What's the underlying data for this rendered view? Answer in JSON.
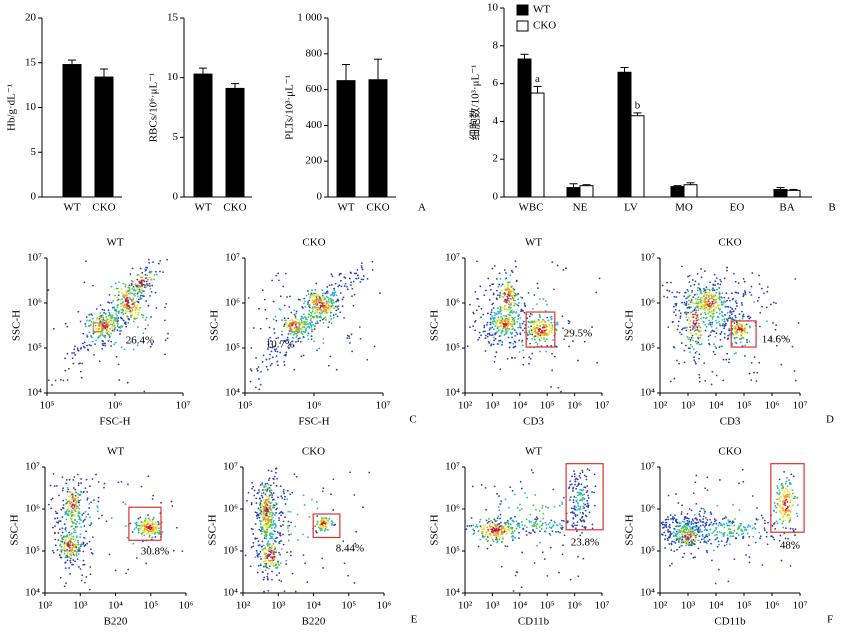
{
  "chart_data": [
    {
      "type": "bar",
      "ylabel": "Hb/g·dL⁻¹",
      "categories": [
        "WT",
        "CKO"
      ],
      "values": [
        14.8,
        13.4
      ],
      "errors": [
        0.5,
        0.9
      ],
      "color": "#000000",
      "ylim": [
        0,
        20
      ],
      "yticks": [
        0,
        5,
        10,
        15,
        20
      ]
    },
    {
      "type": "bar",
      "ylabel": "RBCs/10⁶·μL⁻¹",
      "categories": [
        "WT",
        "CKO"
      ],
      "values": [
        10.3,
        9.1
      ],
      "errors": [
        0.5,
        0.4
      ],
      "color": "#000000",
      "ylim": [
        0,
        15
      ],
      "yticks": [
        0,
        5,
        10,
        15
      ]
    },
    {
      "type": "bar",
      "ylabel": "PLTs/10³·μL⁻¹",
      "categories": [
        "WT",
        "CKO"
      ],
      "values": [
        650,
        655
      ],
      "errors": [
        90,
        115
      ],
      "color": "#000000",
      "ylim": [
        0,
        1000
      ],
      "yticks": [
        0,
        200,
        400,
        600,
        800,
        {
          "value": 1000,
          "label": "1 000"
        }
      ],
      "panel": "A"
    },
    {
      "type": "grouped_bar",
      "ylabel": "细胞数/10³·μL⁻¹",
      "categories": [
        "WBC",
        "NE",
        "LV",
        "MO",
        "EO",
        "BA"
      ],
      "ylim": [
        0,
        10
      ],
      "yticks": [
        0,
        2,
        4,
        6,
        8,
        10
      ],
      "panel": "B",
      "legend": "top-left",
      "series": [
        {
          "name": "WT",
          "color": "#000000",
          "values": [
            7.3,
            0.5,
            6.6,
            0.55,
            0,
            0.4
          ],
          "errors": [
            0.25,
            0.2,
            0.25,
            0.05,
            0,
            0.1
          ]
        },
        {
          "name": "CKO",
          "color": "#ffffff",
          "values": [
            5.5,
            0.6,
            4.3,
            0.65,
            0,
            0.35
          ],
          "errors": [
            0.35,
            0.05,
            0.15,
            0.1,
            0,
            0.05
          ],
          "annotations": [
            "a",
            null,
            "b",
            null,
            null,
            null
          ]
        }
      ]
    },
    {
      "type": "flow",
      "title": "WT",
      "xlabel": "FSC-H",
      "ylabel": "SSC-H",
      "log": true,
      "xlim": [
        100000,
        10000000
      ],
      "xticks": [
        {
          "value": 100000,
          "label": "10⁵"
        },
        {
          "value": 1000000,
          "label": "10⁶"
        },
        {
          "value": 10000000,
          "label": "10⁷"
        }
      ],
      "ylim": [
        10000,
        10000000
      ],
      "yticks": [
        {
          "value": 10000,
          "label": "10⁴"
        },
        {
          "value": 100000,
          "label": "10⁵"
        },
        {
          "value": 1000000,
          "label": "10⁶"
        },
        {
          "value": 10000000,
          "label": "10⁷"
        }
      ],
      "gate": {
        "x": [
          480000,
          640000
        ],
        "y": [
          230000,
          360000
        ],
        "percent": 26.4,
        "label": "26.4%",
        "color": "#c8862c"
      }
    },
    {
      "type": "flow",
      "title": "CKO",
      "xlabel": "FSC-H",
      "ylabel": "SSC-H",
      "log": true,
      "xlim": [
        100000,
        10000000
      ],
      "xticks": [
        {
          "value": 100000,
          "label": "10⁵"
        },
        {
          "value": 1000000,
          "label": "10⁶"
        },
        {
          "value": 10000000,
          "label": "10⁷"
        }
      ],
      "ylim": [
        10000,
        10000000
      ],
      "yticks": [
        {
          "value": 10000,
          "label": "10⁴"
        },
        {
          "value": 100000,
          "label": "10⁵"
        },
        {
          "value": 1000000,
          "label": "10⁶"
        },
        {
          "value": 10000000,
          "label": "10⁷"
        }
      ],
      "gate": {
        "x": [
          460000,
          610000
        ],
        "y": [
          230000,
          360000
        ],
        "percent": 10.7,
        "label": "10.7%",
        "color": "#c8862c"
      },
      "panel": "C"
    },
    {
      "type": "flow",
      "title": "WT",
      "xlabel": "CD3",
      "ylabel": "SSC-H",
      "log": true,
      "xlim": [
        100,
        10000000
      ],
      "xticks": [
        {
          "value": 100,
          "label": "10²"
        },
        {
          "value": 1000,
          "label": "10³"
        },
        {
          "value": 10000,
          "label": "10⁴"
        },
        {
          "value": 100000,
          "label": "10⁵"
        },
        {
          "value": 1000000,
          "label": "10⁶"
        },
        {
          "value": 10000000,
          "label": "10⁷"
        }
      ],
      "ylim": [
        10000,
        10000000
      ],
      "yticks": [
        {
          "value": 10000,
          "label": "10⁴"
        },
        {
          "value": 100000,
          "label": "10⁵"
        },
        {
          "value": 1000000,
          "label": "10⁶"
        },
        {
          "value": 10000000,
          "label": "10⁷"
        }
      ],
      "gate": {
        "x": [
          17000,
          190000
        ],
        "y": [
          105000,
          630000
        ],
        "percent": 29.5,
        "label": "29.5%",
        "color": "#e0322c"
      }
    },
    {
      "type": "flow",
      "title": "CKO",
      "xlabel": "CD3",
      "ylabel": "SSC-H",
      "log": true,
      "xlim": [
        100,
        10000000
      ],
      "xticks": [
        {
          "value": 100,
          "label": "10²"
        },
        {
          "value": 1000,
          "label": "10³"
        },
        {
          "value": 10000,
          "label": "10⁴"
        },
        {
          "value": 100000,
          "label": "10⁵"
        },
        {
          "value": 1000000,
          "label": "10⁶"
        },
        {
          "value": 10000000,
          "label": "10⁷"
        }
      ],
      "ylim": [
        10000,
        10000000
      ],
      "yticks": [
        {
          "value": 10000,
          "label": "10⁴"
        },
        {
          "value": 100000,
          "label": "10⁵"
        },
        {
          "value": 1000000,
          "label": "10⁶"
        },
        {
          "value": 10000000,
          "label": "10⁷"
        }
      ],
      "gate": {
        "x": [
          35000,
          270000
        ],
        "y": [
          105000,
          400000
        ],
        "percent": 14.6,
        "label": "14.6%",
        "color": "#e0322c"
      },
      "panel": "D"
    },
    {
      "type": "flow",
      "title": "WT",
      "xlabel": "B220",
      "ylabel": "SSC-H",
      "log": true,
      "xlim": [
        100,
        1000000
      ],
      "xticks": [
        {
          "value": 100,
          "label": "10²"
        },
        {
          "value": 1000,
          "label": "10³"
        },
        {
          "value": 10000,
          "label": "10⁴"
        },
        {
          "value": 100000,
          "label": "10⁵"
        },
        {
          "value": 1000000,
          "label": "10⁶"
        }
      ],
      "ylim": [
        10000,
        10000000
      ],
      "yticks": [
        {
          "value": 10000,
          "label": "10⁴"
        },
        {
          "value": 100000,
          "label": "10⁵"
        },
        {
          "value": 1000000,
          "label": "10⁶"
        },
        {
          "value": 10000000,
          "label": "10⁷"
        }
      ],
      "gate": {
        "x": [
          24000,
          195000
        ],
        "y": [
          180000,
          1100000
        ],
        "percent": 30.8,
        "label": "30.8%",
        "color": "#e0322c"
      }
    },
    {
      "type": "flow",
      "title": "CKO",
      "xlabel": "B220",
      "ylabel": "SSC-H",
      "log": true,
      "xlim": [
        100,
        1000000
      ],
      "xticks": [
        {
          "value": 100,
          "label": "10²"
        },
        {
          "value": 1000,
          "label": "10³"
        },
        {
          "value": 10000,
          "label": "10⁴"
        },
        {
          "value": 100000,
          "label": "10⁵"
        },
        {
          "value": 1000000,
          "label": "10⁶"
        }
      ],
      "ylim": [
        10000,
        10000000
      ],
      "yticks": [
        {
          "value": 10000,
          "label": "10⁴"
        },
        {
          "value": 100000,
          "label": "10⁵"
        },
        {
          "value": 1000000,
          "label": "10⁶"
        },
        {
          "value": 10000000,
          "label": "10⁷"
        }
      ],
      "gate": {
        "x": [
          9800,
          56000
        ],
        "y": [
          210000,
          760000
        ],
        "percent": 8.44,
        "label": "8.44%",
        "color": "#e0322c"
      },
      "panel": "E"
    },
    {
      "type": "flow",
      "title": "WT",
      "xlabel": "CD11b",
      "ylabel": "SSC-H",
      "log": true,
      "xlim": [
        100,
        10000000
      ],
      "xticks": [
        {
          "value": 100,
          "label": "10²"
        },
        {
          "value": 1000,
          "label": "10³"
        },
        {
          "value": 10000,
          "label": "10⁴"
        },
        {
          "value": 100000,
          "label": "10⁵"
        },
        {
          "value": 1000000,
          "label": "10⁶"
        },
        {
          "value": 10000000,
          "label": "10⁷"
        }
      ],
      "ylim": [
        10000,
        10000000
      ],
      "yticks": [
        {
          "value": 10000,
          "label": "10⁴"
        },
        {
          "value": 100000,
          "label": "10⁵"
        },
        {
          "value": 1000000,
          "label": "10⁶"
        },
        {
          "value": 10000000,
          "label": "10⁷"
        }
      ],
      "gate": {
        "x": [
          490000,
          11000000
        ],
        "y": [
          320000,
          12000000
        ],
        "percent": 23.8,
        "label": "23.8%",
        "color": "#e0322c"
      }
    },
    {
      "type": "flow",
      "title": "CKO",
      "xlabel": "CD11b",
      "ylabel": "SSC-H",
      "log": true,
      "xlim": [
        100,
        10000000
      ],
      "xticks": [
        {
          "value": 100,
          "label": "10²"
        },
        {
          "value": 1000,
          "label": "10³"
        },
        {
          "value": 10000,
          "label": "10⁴"
        },
        {
          "value": 100000,
          "label": "10⁵"
        },
        {
          "value": 1000000,
          "label": "10⁶"
        },
        {
          "value": 10000000,
          "label": "10⁷"
        }
      ],
      "ylim": [
        10000,
        10000000
      ],
      "yticks": [
        {
          "value": 10000,
          "label": "10⁴"
        },
        {
          "value": 100000,
          "label": "10⁵"
        },
        {
          "value": 1000000,
          "label": "10⁶"
        },
        {
          "value": 10000000,
          "label": "10⁷"
        }
      ],
      "gate": {
        "x": [
          910000,
          14000000
        ],
        "y": [
          280000,
          12000000
        ],
        "percent": 48,
        "label": "48%",
        "color": "#e0322c"
      },
      "panel": "F"
    }
  ]
}
